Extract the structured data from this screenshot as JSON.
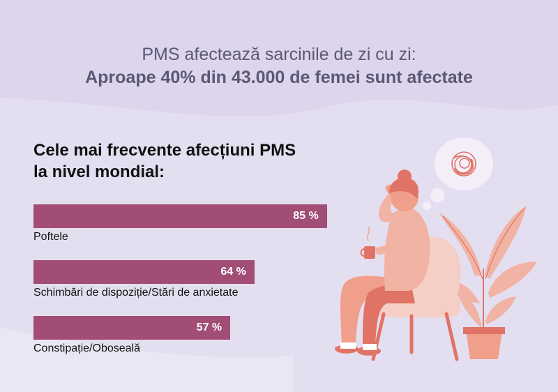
{
  "header": {
    "line1": "PMS afectează sarcinile de zi cu zi:",
    "line2": "Aproape 40% din 43.000 de femei sunt afectate"
  },
  "chart_data": {
    "type": "bar",
    "orientation": "horizontal",
    "title": "Cele mai frecvente afecțiuni PMS la nivel mondial:",
    "categories": [
      "Poftele",
      "Schimbări de dispoziție/Stări de anxietate",
      "Constipație/Oboseală"
    ],
    "values": [
      85,
      64,
      57
    ],
    "value_labels": [
      "85 %",
      "64 %",
      "57 %"
    ],
    "unit": "%",
    "xlim": [
      0,
      100
    ],
    "grid": false,
    "bar_color": "#a14d76"
  },
  "colors": {
    "background": "#e4dff0",
    "title_text": "#5b5876",
    "bar": "#a14d76",
    "illustration_skin": "#f0a08a",
    "illustration_dark": "#e07366",
    "illustration_chair": "#f5cfc6",
    "illustration_plant": "#f1b3a4"
  },
  "illustration": {
    "icon": "stressed-woman-in-chair-illustration"
  }
}
